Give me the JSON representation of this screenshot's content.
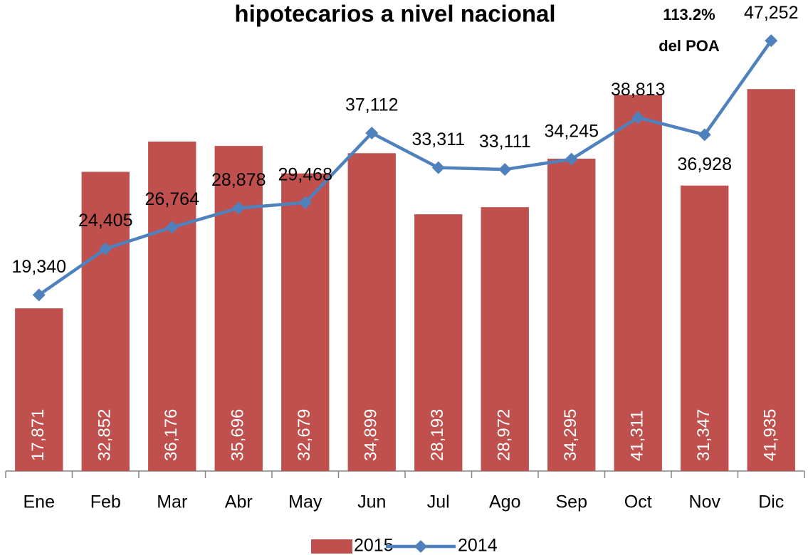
{
  "chart_data": {
    "type": "bar",
    "title": "hipotecarios a nivel nacional",
    "annotation": [
      "113.2%",
      "del POA"
    ],
    "categories": [
      "Ene",
      "Feb",
      "Mar",
      "Abr",
      "May",
      "Jun",
      "Jul",
      "Ago",
      "Sep",
      "Oct",
      "Nov",
      "Dic"
    ],
    "series": [
      {
        "name": "2015",
        "type": "bar",
        "color": "#c0504d",
        "values": [
          17871,
          32852,
          36176,
          35696,
          32679,
          34899,
          28193,
          28972,
          34295,
          41311,
          31347,
          41935
        ],
        "value_labels": [
          "17,871",
          "32,852",
          "36,176",
          "35,696",
          "32,679",
          "34,899",
          "28,193",
          "28,972",
          "34,295",
          "41,311",
          "31,347",
          "41,935"
        ]
      },
      {
        "name": "2014",
        "type": "line",
        "color": "#4f81bd",
        "values": [
          19340,
          24405,
          26764,
          28878,
          29468,
          37112,
          33311,
          33111,
          34245,
          38813,
          36928,
          47252
        ],
        "value_labels": [
          "19,340",
          "24,405",
          "26,764",
          "28,878",
          "29,468",
          "37,112",
          "33,311",
          "33,111",
          "34,245",
          "38,813",
          "36,928",
          "47,252"
        ]
      }
    ],
    "ylim": [
      0,
      50000
    ]
  }
}
